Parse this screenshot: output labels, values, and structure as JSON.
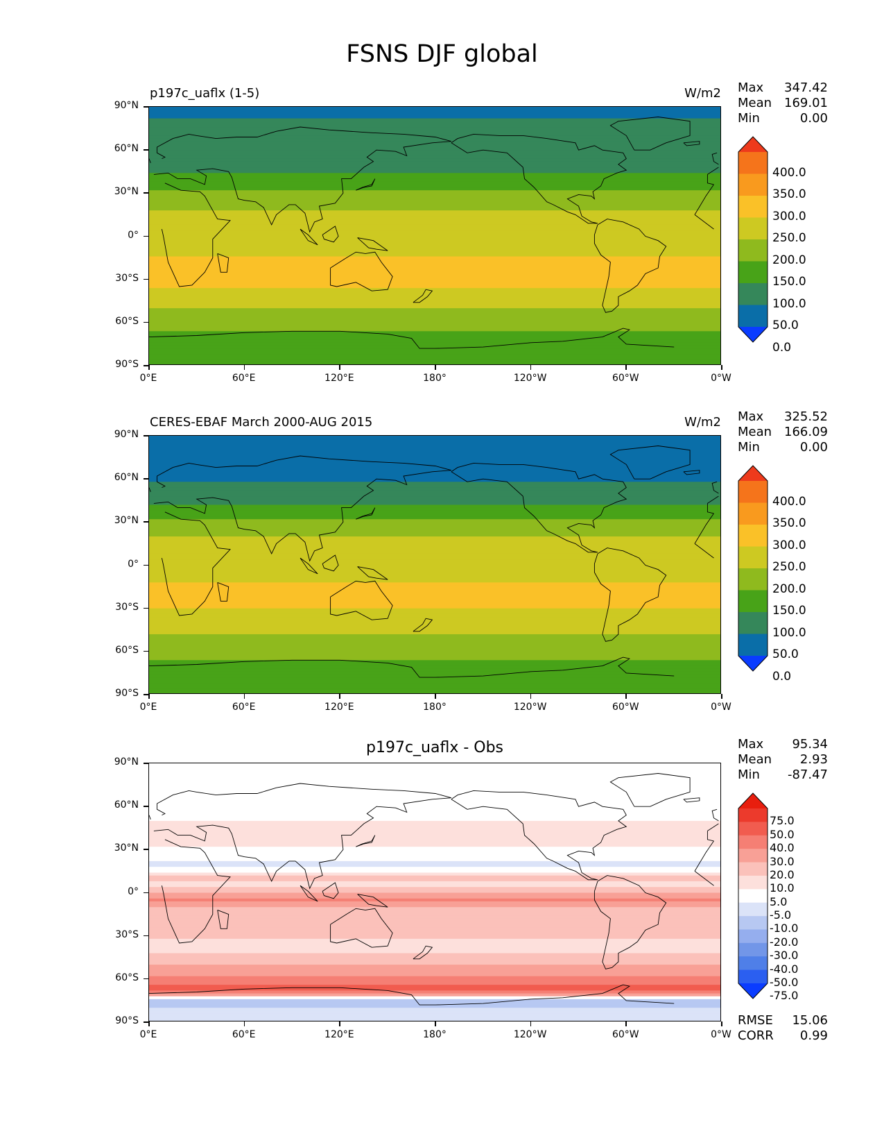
{
  "figure": {
    "title": "FSNS DJF global"
  },
  "axes": {
    "yticks": [
      "90°N",
      "60°N",
      "30°N",
      "0°",
      "30°S",
      "60°S",
      "90°S"
    ],
    "xticks": [
      "0°E",
      "60°E",
      "120°E",
      "180°",
      "120°W",
      "60°W",
      "0°W"
    ]
  },
  "panels": [
    {
      "title_left": "p197c_uaflx (1-5)",
      "title_right": "W/m2",
      "title_center": "",
      "stats": [
        {
          "label": "Max",
          "value": "347.42"
        },
        {
          "label": "Mean",
          "value": "169.01"
        },
        {
          "label": "Min",
          "value": "0.00"
        }
      ],
      "colorbar_labels": [
        "400.0",
        "350.0",
        "300.0",
        "250.0",
        "200.0",
        "150.0",
        "100.0",
        "50.0",
        "0.0"
      ],
      "footer_stats": []
    },
    {
      "title_left": "CERES-EBAF March 2000-AUG 2015",
      "title_right": "W/m2",
      "title_center": "",
      "stats": [
        {
          "label": "Max",
          "value": "325.52"
        },
        {
          "label": "Mean",
          "value": "166.09"
        },
        {
          "label": "Min",
          "value": "0.00"
        }
      ],
      "colorbar_labels": [
        "400.0",
        "350.0",
        "300.0",
        "250.0",
        "200.0",
        "150.0",
        "100.0",
        "50.0",
        "0.0"
      ],
      "footer_stats": []
    },
    {
      "title_left": "",
      "title_right": "",
      "title_center": "p197c_uaflx - Obs",
      "stats": [
        {
          "label": "Max",
          "value": "95.34"
        },
        {
          "label": "Mean",
          "value": "2.93"
        },
        {
          "label": "Min",
          "value": "-87.47"
        }
      ],
      "colorbar_labels": [
        "75.0",
        "50.0",
        "40.0",
        "30.0",
        "20.0",
        "10.0",
        "5.0",
        "-5.0",
        "-10.0",
        "-20.0",
        "-30.0",
        "-40.0",
        "-50.0",
        "-75.0"
      ],
      "footer_stats": [
        {
          "label": "RMSE",
          "value": "15.06"
        },
        {
          "label": "CORR",
          "value": "0.99"
        }
      ]
    }
  ],
  "chart_data": [
    {
      "type": "heatmap",
      "title": "p197c_uaflx (1-5)",
      "units": "W/m2",
      "x_range": [
        0,
        360
      ],
      "y_range": [
        -90,
        90
      ],
      "levels": [
        0,
        50,
        100,
        150,
        200,
        250,
        300,
        350,
        400
      ],
      "colors": [
        "#0a3cff",
        "#0a6ea8",
        "#35875a",
        "#48a318",
        "#8fba1e",
        "#cdc922",
        "#fac128",
        "#f99a1e",
        "#f5741b",
        "#ee3a1c"
      ],
      "zonal_profile": {
        "lat": [
          88,
          75,
          60,
          45,
          35,
          25,
          15,
          5,
          -5,
          -15,
          -25,
          -35,
          -45,
          -55,
          -65,
          -72,
          -85
        ],
        "value": [
          25,
          75,
          75,
          90,
          140,
          175,
          215,
          205,
          225,
          255,
          260,
          250,
          210,
          190,
          150,
          110,
          110
        ]
      },
      "max": 347.42,
      "mean": 169.01,
      "min": 0.0
    },
    {
      "type": "heatmap",
      "title": "CERES-EBAF March 2000-AUG 2015",
      "units": "W/m2",
      "x_range": [
        0,
        360
      ],
      "y_range": [
        -90,
        90
      ],
      "levels": [
        0,
        50,
        100,
        150,
        200,
        250,
        300,
        350,
        400
      ],
      "colors": [
        "#0a3cff",
        "#0a6ea8",
        "#35875a",
        "#48a318",
        "#8fba1e",
        "#cdc922",
        "#fac128",
        "#f99a1e",
        "#f5741b",
        "#ee3a1c"
      ],
      "zonal_profile": {
        "lat": [
          88,
          75,
          60,
          45,
          35,
          25,
          15,
          5,
          -5,
          -15,
          -25,
          -35,
          -45,
          -55,
          -65,
          -72,
          -85
        ],
        "value": [
          40,
          40,
          45,
          85,
          140,
          175,
          220,
          215,
          225,
          260,
          260,
          240,
          205,
          185,
          155,
          110,
          110
        ]
      },
      "max": 325.52,
      "mean": 166.09,
      "min": 0.0
    },
    {
      "type": "heatmap",
      "title": "p197c_uaflx - Obs",
      "x_range": [
        0,
        360
      ],
      "y_range": [
        -90,
        90
      ],
      "levels": [
        -75,
        -50,
        -40,
        -30,
        -20,
        -10,
        -5,
        5,
        10,
        20,
        30,
        40,
        50,
        75
      ],
      "colors": [
        "#0a3cff",
        "#2b5ff0",
        "#4f7fe8",
        "#7296e8",
        "#95aeee",
        "#b7c8f2",
        "#dbe3f8",
        "#ffffff",
        "#fde0dc",
        "#fbc1ba",
        "#f8a096",
        "#f57f74",
        "#f15c4f",
        "#ec3a2c",
        "#e81e0e"
      ],
      "zonal_profile": {
        "lat": [
          85,
          70,
          50,
          35,
          20,
          10,
          5,
          -5,
          -15,
          -25,
          -40,
          -55,
          -62,
          -68,
          -75,
          -85
        ],
        "value": [
          0,
          2,
          5,
          8,
          -8,
          15,
          6,
          30,
          10,
          12,
          8,
          25,
          35,
          45,
          -12,
          -8
        ]
      },
      "max": 95.34,
      "mean": 2.93,
      "min": -87.47,
      "rmse": 15.06,
      "corr": 0.99
    }
  ]
}
